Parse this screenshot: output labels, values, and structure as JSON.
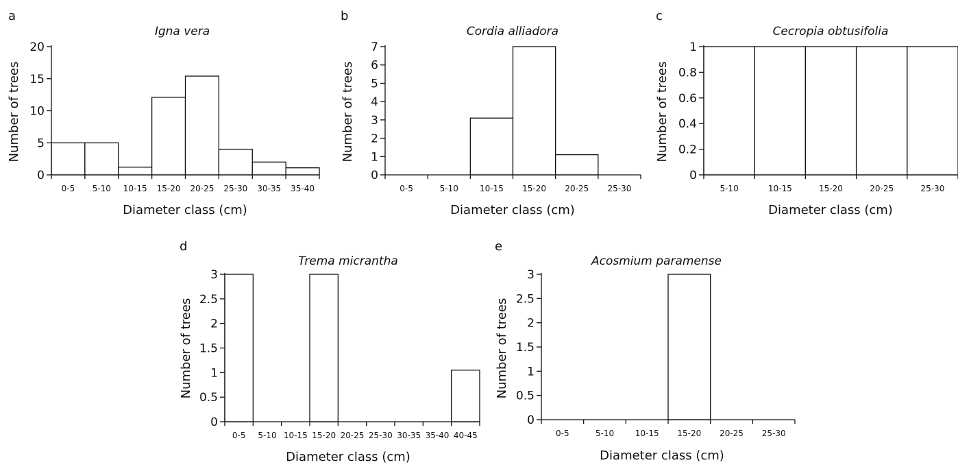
{
  "chart_data": [
    {
      "panel": "a",
      "type": "bar",
      "title": "Igna vera",
      "xlabel": "Diameter class (cm)",
      "ylabel": "Number of trees",
      "categories": [
        "0-5",
        "5-10",
        "10-15",
        "15-20",
        "20-25",
        "25-30",
        "30-35",
        "35-40"
      ],
      "values": [
        5,
        5,
        1.2,
        12.1,
        15.4,
        4,
        2,
        1.1
      ],
      "ylim": [
        0,
        20
      ],
      "yticks": [
        "0",
        "5",
        "10",
        "15",
        "20"
      ]
    },
    {
      "panel": "b",
      "type": "bar",
      "title": "Cordia alliadora",
      "xlabel": "Diameter class (cm)",
      "ylabel": "Number of trees",
      "categories": [
        "0-5",
        "5-10",
        "10-15",
        "15-20",
        "20-25",
        "25-30"
      ],
      "values": [
        0,
        0,
        3.1,
        7,
        1.1,
        0
      ],
      "ylim": [
        0,
        7
      ],
      "yticks": [
        "0",
        "1",
        "2",
        "3",
        "4",
        "5",
        "6",
        "7"
      ]
    },
    {
      "panel": "c",
      "type": "bar",
      "title": "Cecropia obtusifolia",
      "xlabel": "Diameter class (cm)",
      "ylabel": "Number of trees",
      "categories": [
        "5-10",
        "10-15",
        "15-20",
        "20-25",
        "25-30"
      ],
      "values": [
        1,
        1,
        1,
        1,
        1
      ],
      "ylim": [
        0,
        1
      ],
      "yticks": [
        "0",
        "0.2",
        "0.4",
        "0.6",
        "0.8",
        "1"
      ]
    },
    {
      "panel": "d",
      "type": "bar",
      "title": "Trema micrantha",
      "xlabel": "Diameter class (cm)",
      "ylabel": "Number of trees",
      "categories": [
        "0-5",
        "5-10",
        "10-15",
        "15-20",
        "20-25",
        "25-30",
        "30-35",
        "35-40",
        "40-45"
      ],
      "values": [
        3,
        0,
        0,
        3,
        0,
        0,
        0,
        0,
        1.05
      ],
      "ylim": [
        0,
        3
      ],
      "yticks": [
        "0",
        "0.5",
        "1",
        "1.5",
        "2",
        "2.5",
        "3"
      ]
    },
    {
      "panel": "e",
      "type": "bar",
      "title": "Acosmium paramense",
      "xlabel": "Diameter class (cm)",
      "ylabel": "Number of trees",
      "categories": [
        "0-5",
        "5-10",
        "10-15",
        "15-20",
        "20-25",
        "25-30"
      ],
      "values": [
        0,
        0,
        0,
        3,
        0,
        0
      ],
      "ylim": [
        0,
        3
      ],
      "yticks": [
        "0",
        "0.5",
        "1",
        "1.5",
        "2",
        "2.5",
        "3"
      ]
    }
  ]
}
